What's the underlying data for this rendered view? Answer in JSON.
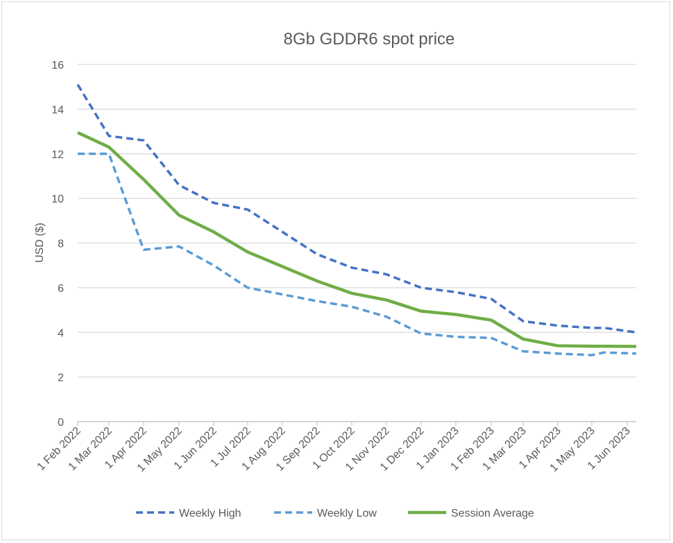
{
  "chart_data": {
    "type": "line",
    "title": "8Gb GDDR6 spot price",
    "xlabel": "",
    "ylabel": "USD ($)",
    "ylim": [
      0,
      16
    ],
    "yticks": [
      0,
      2,
      4,
      6,
      8,
      10,
      12,
      14,
      16
    ],
    "grid": true,
    "legend_position": "bottom",
    "xtick_labels": [
      "1 Feb 2022",
      "1 Mar 2022",
      "1 Apr 2022",
      "1 May 2022",
      "1 Jun 2022",
      "1 Jul 2022",
      "1 Aug 2022",
      "1 Sep 2022",
      "1 Oct 2022",
      "1 Nov 2022",
      "1 Dec 2022",
      "1 Jan 2023",
      "1 Feb 2023",
      "1 Mar 2023",
      "1 Apr 2023",
      "1 May 2023",
      "1 Jun 2023"
    ],
    "x_months_since_feb_2022": [
      0,
      1,
      2,
      3,
      4,
      5,
      6,
      7,
      8,
      9,
      10,
      11,
      12,
      13,
      14,
      15,
      15.35,
      16.26
    ],
    "xlim_months": [
      0,
      16.26
    ],
    "series": [
      {
        "name": "Weekly High",
        "color": "#4472c4",
        "style": "dashed",
        "values": [
          15.1,
          12.8,
          12.6,
          10.6,
          9.8,
          9.5,
          8.5,
          7.5,
          6.9,
          6.6,
          6.0,
          5.8,
          5.5,
          4.5,
          4.3,
          4.2,
          4.2,
          4.0
        ]
      },
      {
        "name": "Weekly Low",
        "color": "#5b9bd5",
        "style": "dashed",
        "values": [
          12.0,
          12.0,
          7.7,
          7.85,
          7.0,
          6.0,
          5.7,
          5.4,
          5.15,
          4.7,
          3.95,
          3.8,
          3.75,
          3.15,
          3.05,
          2.98,
          3.1,
          3.05
        ]
      },
      {
        "name": "Session Average",
        "color": "#70ad47",
        "style": "solid",
        "values": [
          12.95,
          12.3,
          10.85,
          9.25,
          8.5,
          7.6,
          6.95,
          6.3,
          5.75,
          5.45,
          4.95,
          4.8,
          4.55,
          3.7,
          3.4,
          3.38,
          3.38,
          3.37
        ]
      }
    ]
  }
}
